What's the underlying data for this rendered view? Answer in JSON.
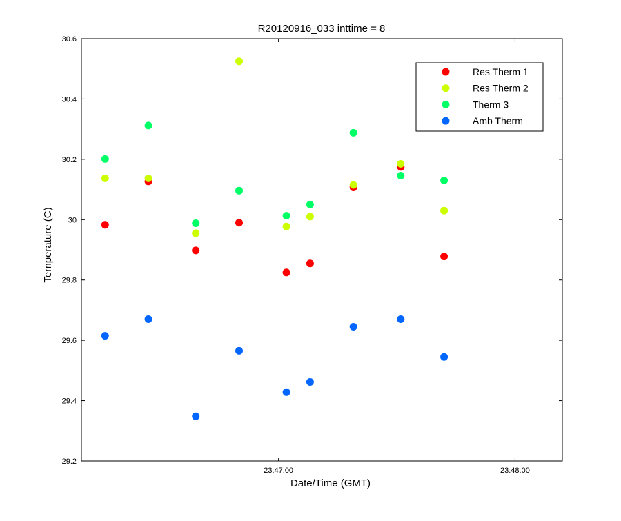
{
  "chart_data": {
    "type": "scatter",
    "title": "R20120916_033 inttime = 8",
    "xlabel": "Date/Time (GMT)",
    "ylabel": "Temperature (C)",
    "ylim": [
      29.2,
      30.6
    ],
    "yticks": [
      29.2,
      29.4,
      29.6,
      29.8,
      30,
      30.2,
      30.4,
      30.6
    ],
    "ytick_labels": [
      "29.2",
      "29.4",
      "29.6",
      "29.8",
      "30",
      "30.2",
      "30.4",
      "30.6"
    ],
    "xlim": [
      "23:46:10",
      "23:48:12"
    ],
    "xticks": [
      "23:47:00",
      "23:48:00"
    ],
    "xtick_labels": [
      "23:47:00",
      "23:48:00"
    ],
    "x": [
      "23:46:16",
      "23:46:27",
      "23:46:39",
      "23:46:50",
      "23:47:02",
      "23:47:08",
      "23:47:19",
      "23:47:31",
      "23:47:42"
    ],
    "legend_position": "top-right",
    "grid": false,
    "series": [
      {
        "name": "Res Therm 1",
        "color": "#ff0000",
        "values": [
          29.983,
          30.127,
          29.898,
          29.99,
          29.825,
          29.855,
          30.107,
          30.175,
          29.878
        ]
      },
      {
        "name": "Res Therm 2",
        "color": "#ccff00",
        "values": [
          30.137,
          30.137,
          29.955,
          30.525,
          29.977,
          30.01,
          30.115,
          30.185,
          30.03
        ]
      },
      {
        "name": "Therm 3",
        "color": "#00ff66",
        "values": [
          30.201,
          30.312,
          29.988,
          30.096,
          30.013,
          30.05,
          30.288,
          30.146,
          30.13
        ]
      },
      {
        "name": "Amb Therm",
        "color": "#0066ff",
        "values": [
          29.615,
          29.67,
          29.348,
          29.565,
          29.428,
          29.462,
          29.645,
          29.67,
          29.545
        ]
      }
    ]
  }
}
